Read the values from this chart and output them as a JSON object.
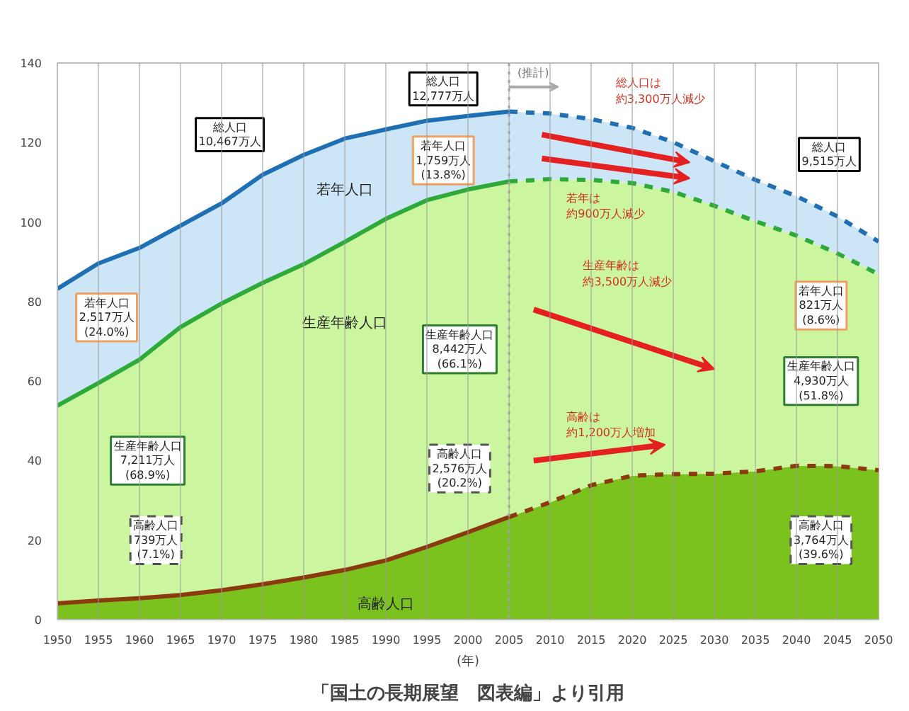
{
  "chart_data": {
    "type": "area",
    "stacked": true,
    "xlabel": "(年)",
    "x": [
      1950,
      1955,
      1960,
      1965,
      1970,
      1975,
      1980,
      1985,
      1990,
      1995,
      2000,
      2005,
      2010,
      2015,
      2020,
      2025,
      2030,
      2035,
      2040,
      2045,
      2050
    ],
    "series": [
      {
        "name": "高齢人口",
        "color": "#7cc21e",
        "values": [
          4.1,
          4.8,
          5.4,
          6.2,
          7.4,
          8.9,
          10.6,
          12.5,
          14.9,
          18.3,
          22.0,
          25.8,
          29.5,
          33.8,
          36.2,
          36.6,
          36.7,
          37.3,
          38.7,
          38.6,
          37.6
        ]
      },
      {
        "name": "生産年齢人口",
        "color": "#ccf5a0",
        "values": [
          49.7,
          54.7,
          60.0,
          67.4,
          72.1,
          75.8,
          78.8,
          82.5,
          85.9,
          87.2,
          86.2,
          84.4,
          81.3,
          76.8,
          73.6,
          71.0,
          67.4,
          62.9,
          57.9,
          53.5,
          49.3
        ]
      },
      {
        "name": "若年人口",
        "color": "#cde6f7",
        "values": [
          29.4,
          30.1,
          28.1,
          25.5,
          25.2,
          27.2,
          27.5,
          26.0,
          22.5,
          20.0,
          18.5,
          17.6,
          16.5,
          15.3,
          13.9,
          12.5,
          11.2,
          10.4,
          9.9,
          9.3,
          8.2
        ]
      }
    ],
    "xlim": [
      1950,
      2050
    ],
    "xticks": [
      1950,
      1955,
      1960,
      1965,
      1970,
      1975,
      1980,
      1985,
      1990,
      1995,
      2000,
      2005,
      2010,
      2015,
      2020,
      2025,
      2030,
      2035,
      2040,
      2045,
      2050
    ],
    "ylim": [
      0,
      140
    ],
    "yticks": [
      0,
      20,
      40,
      60,
      80,
      100,
      120,
      140
    ],
    "grid": "x",
    "ref_lines": [
      {
        "axis": "x",
        "value": 2005,
        "label": "(推計)",
        "color": "#aaaaaa",
        "line_style": "dotted"
      }
    ],
    "annotations": [
      "総人口\n10,467万人",
      "若年人口\n2,517万人\n(24.0%)",
      "生産年齢人口\n7,211万人\n(68.9%)",
      "高齢人口\n739万人\n(7.1%)",
      "総人口\n12,777万人",
      "若年人口\n1,759万人\n(13.8%)",
      "生産年齢人口\n8,442万人\n(66.1%)",
      "高齢人口\n2,576万人\n(20.2%)",
      "総人口\n9,515万人",
      "若年人口\n821万人\n(8.6%)",
      "生産年齢人口\n4,930万人\n(51.8%)",
      "高齢人口\n3,764万人\n(39.6%)",
      "総人口は",
      "約3,300万人減少",
      "若年は",
      "約900万人減少",
      "生産年齢は",
      "約3,500万人減少",
      "高齢は",
      "約1,200万人増加",
      "「国土の長期展望　図表編」より引用"
    ]
  }
}
